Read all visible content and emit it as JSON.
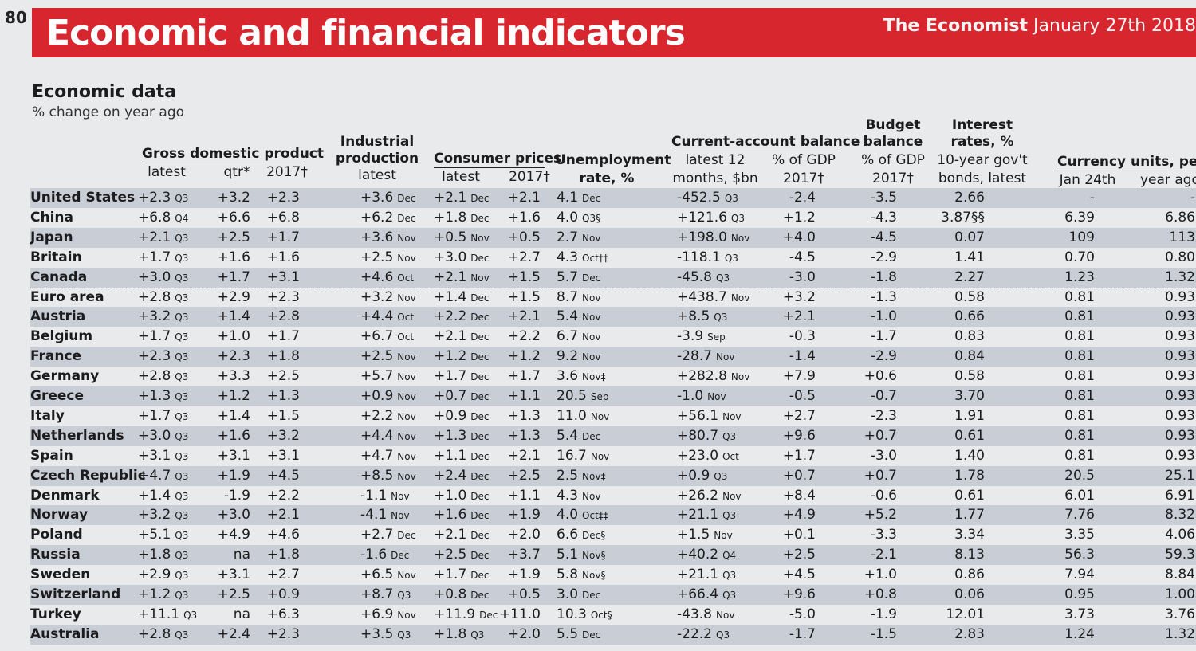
{
  "page_number": "80",
  "banner": {
    "title": "Economic and financial indicators",
    "publication": "The Economist",
    "date": "January 27th 2018",
    "color": "#d8262e"
  },
  "section": {
    "title": "Economic data",
    "subtitle": "% change on year ago"
  },
  "headers": {
    "gdp": "Gross domestic product",
    "gdp_latest": "latest",
    "gdp_qtr": "qtr*",
    "gdp_2017": "2017†",
    "ip_1": "Industrial",
    "ip_2": "production",
    "ip_latest": "latest",
    "cpi": "Consumer prices",
    "cpi_latest": "latest",
    "cpi_2017": "2017†",
    "unemp_1": "Unemployment",
    "unemp_2": "rate, %",
    "ca": "Current-account balance",
    "ca_a1": "latest 12",
    "ca_a2": "months, $bn",
    "ca_b1": "% of GDP",
    "ca_b2": "2017†",
    "bb_1": "Budget",
    "bb_2": "balance",
    "bb_3": "% of GDP",
    "bb_4": "2017†",
    "ir_1": "Interest",
    "ir_2": "rates, %",
    "ir_3": "10-year gov't",
    "ir_4": "bonds, latest",
    "cur": "Currency units, per $",
    "cur_a": "Jan 24th",
    "cur_b": "year ago"
  },
  "rows": [
    {
      "country": "United States",
      "gdp_latest": "+2.3",
      "gdp_latest_period": "Q3",
      "gdp_qtr": "+3.2",
      "gdp_2017": "+2.3",
      "ip": "+3.6",
      "ip_period": "Dec",
      "cpi": "+2.1",
      "cpi_period": "Dec",
      "cpi_2017": "+2.1",
      "unemp": "4.1",
      "unemp_period": "Dec",
      "ca_bn": "-452.5",
      "ca_period": "Q3",
      "ca_gdp": "-2.4",
      "budget": "-3.5",
      "bonds": "2.66",
      "cur_now": "-",
      "cur_ago": "-"
    },
    {
      "country": "China",
      "gdp_latest": "+6.8",
      "gdp_latest_period": "Q4",
      "gdp_qtr": "+6.6",
      "gdp_2017": "+6.8",
      "ip": "+6.2",
      "ip_period": "Dec",
      "cpi": "+1.8",
      "cpi_period": "Dec",
      "cpi_2017": "+1.6",
      "unemp": "4.0",
      "unemp_period": "Q3§",
      "ca_bn": "+121.6",
      "ca_period": "Q3",
      "ca_gdp": "+1.2",
      "budget": "-4.3",
      "bonds": "3.87§§",
      "cur_now": "6.39",
      "cur_ago": "6.86"
    },
    {
      "country": "Japan",
      "gdp_latest": "+2.1",
      "gdp_latest_period": "Q3",
      "gdp_qtr": "+2.5",
      "gdp_2017": "+1.7",
      "ip": "+3.6",
      "ip_period": "Nov",
      "cpi": "+0.5",
      "cpi_period": "Nov",
      "cpi_2017": "+0.5",
      "unemp": "2.7",
      "unemp_period": "Nov",
      "ca_bn": "+198.0",
      "ca_period": "Nov",
      "ca_gdp": "+4.0",
      "budget": "-4.5",
      "bonds": "0.07",
      "cur_now": "109",
      "cur_ago": "113"
    },
    {
      "country": "Britain",
      "gdp_latest": "+1.7",
      "gdp_latest_period": "Q3",
      "gdp_qtr": "+1.6",
      "gdp_2017": "+1.6",
      "ip": "+2.5",
      "ip_period": "Nov",
      "cpi": "+3.0",
      "cpi_period": "Dec",
      "cpi_2017": "+2.7",
      "unemp": "4.3",
      "unemp_period": "Oct††",
      "ca_bn": "-118.1",
      "ca_period": "Q3",
      "ca_gdp": "-4.5",
      "budget": "-2.9",
      "bonds": "1.41",
      "cur_now": "0.70",
      "cur_ago": "0.80"
    },
    {
      "country": "Canada",
      "gdp_latest": "+3.0",
      "gdp_latest_period": "Q3",
      "gdp_qtr": "+1.7",
      "gdp_2017": "+3.1",
      "ip": "+4.6",
      "ip_period": "Oct",
      "cpi": "+2.1",
      "cpi_period": "Nov",
      "cpi_2017": "+1.5",
      "unemp": "5.7",
      "unemp_period": "Dec",
      "ca_bn": "-45.8",
      "ca_period": "Q3",
      "ca_gdp": "-3.0",
      "budget": "-1.8",
      "bonds": "2.27",
      "cur_now": "1.23",
      "cur_ago": "1.32"
    },
    {
      "country": "Euro area",
      "gdp_latest": "+2.8",
      "gdp_latest_period": "Q3",
      "gdp_qtr": "+2.9",
      "gdp_2017": "+2.3",
      "ip": "+3.2",
      "ip_period": "Nov",
      "cpi": "+1.4",
      "cpi_period": "Dec",
      "cpi_2017": "+1.5",
      "unemp": "8.7",
      "unemp_period": "Nov",
      "ca_bn": "+438.7",
      "ca_period": "Nov",
      "ca_gdp": "+3.2",
      "budget": "-1.3",
      "bonds": "0.58",
      "cur_now": "0.81",
      "cur_ago": "0.93"
    },
    {
      "country": "Austria",
      "gdp_latest": "+3.2",
      "gdp_latest_period": "Q3",
      "gdp_qtr": "+1.4",
      "gdp_2017": "+2.8",
      "ip": "+4.4",
      "ip_period": "Oct",
      "cpi": "+2.2",
      "cpi_period": "Dec",
      "cpi_2017": "+2.1",
      "unemp": "5.4",
      "unemp_period": "Nov",
      "ca_bn": "+8.5",
      "ca_period": "Q3",
      "ca_gdp": "+2.1",
      "budget": "-1.0",
      "bonds": "0.66",
      "cur_now": "0.81",
      "cur_ago": "0.93"
    },
    {
      "country": "Belgium",
      "gdp_latest": "+1.7",
      "gdp_latest_period": "Q3",
      "gdp_qtr": "+1.0",
      "gdp_2017": "+1.7",
      "ip": "+6.7",
      "ip_period": "Oct",
      "cpi": "+2.1",
      "cpi_period": "Dec",
      "cpi_2017": "+2.2",
      "unemp": "6.7",
      "unemp_period": "Nov",
      "ca_bn": "-3.9",
      "ca_period": "Sep",
      "ca_gdp": "-0.3",
      "budget": "-1.7",
      "bonds": "0.83",
      "cur_now": "0.81",
      "cur_ago": "0.93"
    },
    {
      "country": "France",
      "gdp_latest": "+2.3",
      "gdp_latest_period": "Q3",
      "gdp_qtr": "+2.3",
      "gdp_2017": "+1.8",
      "ip": "+2.5",
      "ip_period": "Nov",
      "cpi": "+1.2",
      "cpi_period": "Dec",
      "cpi_2017": "+1.2",
      "unemp": "9.2",
      "unemp_period": "Nov",
      "ca_bn": "-28.7",
      "ca_period": "Nov",
      "ca_gdp": "-1.4",
      "budget": "-2.9",
      "bonds": "0.84",
      "cur_now": "0.81",
      "cur_ago": "0.93"
    },
    {
      "country": "Germany",
      "gdp_latest": "+2.8",
      "gdp_latest_period": "Q3",
      "gdp_qtr": "+3.3",
      "gdp_2017": "+2.5",
      "ip": "+5.7",
      "ip_period": "Nov",
      "cpi": "+1.7",
      "cpi_period": "Dec",
      "cpi_2017": "+1.7",
      "unemp": "3.6",
      "unemp_period": "Nov‡",
      "ca_bn": "+282.8",
      "ca_period": "Nov",
      "ca_gdp": "+7.9",
      "budget": "+0.6",
      "bonds": "0.58",
      "cur_now": "0.81",
      "cur_ago": "0.93"
    },
    {
      "country": "Greece",
      "gdp_latest": "+1.3",
      "gdp_latest_period": "Q3",
      "gdp_qtr": "+1.2",
      "gdp_2017": "+1.3",
      "ip": "+0.9",
      "ip_period": "Nov",
      "cpi": "+0.7",
      "cpi_period": "Dec",
      "cpi_2017": "+1.1",
      "unemp": "20.5",
      "unemp_period": "Sep",
      "ca_bn": "-1.0",
      "ca_period": "Nov",
      "ca_gdp": "-0.5",
      "budget": "-0.7",
      "bonds": "3.70",
      "cur_now": "0.81",
      "cur_ago": "0.93"
    },
    {
      "country": "Italy",
      "gdp_latest": "+1.7",
      "gdp_latest_period": "Q3",
      "gdp_qtr": "+1.4",
      "gdp_2017": "+1.5",
      "ip": "+2.2",
      "ip_period": "Nov",
      "cpi": "+0.9",
      "cpi_period": "Dec",
      "cpi_2017": "+1.3",
      "unemp": "11.0",
      "unemp_period": "Nov",
      "ca_bn": "+56.1",
      "ca_period": "Nov",
      "ca_gdp": "+2.7",
      "budget": "-2.3",
      "bonds": "1.91",
      "cur_now": "0.81",
      "cur_ago": "0.93"
    },
    {
      "country": "Netherlands",
      "gdp_latest": "+3.0",
      "gdp_latest_period": "Q3",
      "gdp_qtr": "+1.6",
      "gdp_2017": "+3.2",
      "ip": "+4.4",
      "ip_period": "Nov",
      "cpi": "+1.3",
      "cpi_period": "Dec",
      "cpi_2017": "+1.3",
      "unemp": "5.4",
      "unemp_period": "Dec",
      "ca_bn": "+80.7",
      "ca_period": "Q3",
      "ca_gdp": "+9.6",
      "budget": "+0.7",
      "bonds": "0.61",
      "cur_now": "0.81",
      "cur_ago": "0.93"
    },
    {
      "country": "Spain",
      "gdp_latest": "+3.1",
      "gdp_latest_period": "Q3",
      "gdp_qtr": "+3.1",
      "gdp_2017": "+3.1",
      "ip": "+4.7",
      "ip_period": "Nov",
      "cpi": "+1.1",
      "cpi_period": "Dec",
      "cpi_2017": "+2.1",
      "unemp": "16.7",
      "unemp_period": "Nov",
      "ca_bn": "+23.0",
      "ca_period": "Oct",
      "ca_gdp": "+1.7",
      "budget": "-3.0",
      "bonds": "1.40",
      "cur_now": "0.81",
      "cur_ago": "0.93"
    },
    {
      "country": "Czech Republic",
      "gdp_latest": "+4.7",
      "gdp_latest_period": "Q3",
      "gdp_qtr": "+1.9",
      "gdp_2017": "+4.5",
      "ip": "+8.5",
      "ip_period": "Nov",
      "cpi": "+2.4",
      "cpi_period": "Dec",
      "cpi_2017": "+2.5",
      "unemp": "2.5",
      "unemp_period": "Nov‡",
      "ca_bn": "+0.9",
      "ca_period": "Q3",
      "ca_gdp": "+0.7",
      "budget": "+0.7",
      "bonds": "1.78",
      "cur_now": "20.5",
      "cur_ago": "25.1"
    },
    {
      "country": "Denmark",
      "gdp_latest": "+1.4",
      "gdp_latest_period": "Q3",
      "gdp_qtr": "-1.9",
      "gdp_2017": "+2.2",
      "ip": "-1.1",
      "ip_period": "Nov",
      "cpi": "+1.0",
      "cpi_period": "Dec",
      "cpi_2017": "+1.1",
      "unemp": "4.3",
      "unemp_period": "Nov",
      "ca_bn": "+26.2",
      "ca_period": "Nov",
      "ca_gdp": "+8.4",
      "budget": "-0.6",
      "bonds": "0.61",
      "cur_now": "6.01",
      "cur_ago": "6.91"
    },
    {
      "country": "Norway",
      "gdp_latest": "+3.2",
      "gdp_latest_period": "Q3",
      "gdp_qtr": "+3.0",
      "gdp_2017": "+2.1",
      "ip": "-4.1",
      "ip_period": "Nov",
      "cpi": "+1.6",
      "cpi_period": "Dec",
      "cpi_2017": "+1.9",
      "unemp": "4.0",
      "unemp_period": "Oct‡‡",
      "ca_bn": "+21.1",
      "ca_period": "Q3",
      "ca_gdp": "+4.9",
      "budget": "+5.2",
      "bonds": "1.77",
      "cur_now": "7.76",
      "cur_ago": "8.32"
    },
    {
      "country": "Poland",
      "gdp_latest": "+5.1",
      "gdp_latest_period": "Q3",
      "gdp_qtr": "+4.9",
      "gdp_2017": "+4.6",
      "ip": "+2.7",
      "ip_period": "Dec",
      "cpi": "+2.1",
      "cpi_period": "Dec",
      "cpi_2017": "+2.0",
      "unemp": "6.6",
      "unemp_period": "Dec§",
      "ca_bn": "+1.5",
      "ca_period": "Nov",
      "ca_gdp": "+0.1",
      "budget": "-3.3",
      "bonds": "3.34",
      "cur_now": "3.35",
      "cur_ago": "4.06"
    },
    {
      "country": "Russia",
      "gdp_latest": "+1.8",
      "gdp_latest_period": "Q3",
      "gdp_qtr": "na",
      "gdp_2017": "+1.8",
      "ip": "-1.6",
      "ip_period": "Dec",
      "cpi": "+2.5",
      "cpi_period": "Dec",
      "cpi_2017": "+3.7",
      "unemp": "5.1",
      "unemp_period": "Nov§",
      "ca_bn": "+40.2",
      "ca_period": "Q4",
      "ca_gdp": "+2.5",
      "budget": "-2.1",
      "bonds": "8.13",
      "cur_now": "56.3",
      "cur_ago": "59.3"
    },
    {
      "country": "Sweden",
      "gdp_latest": "+2.9",
      "gdp_latest_period": "Q3",
      "gdp_qtr": "+3.1",
      "gdp_2017": "+2.7",
      "ip": "+6.5",
      "ip_period": "Nov",
      "cpi": "+1.7",
      "cpi_period": "Dec",
      "cpi_2017": "+1.9",
      "unemp": "5.8",
      "unemp_period": "Nov§",
      "ca_bn": "+21.1",
      "ca_period": "Q3",
      "ca_gdp": "+4.5",
      "budget": "+1.0",
      "bonds": "0.86",
      "cur_now": "7.94",
      "cur_ago": "8.84"
    },
    {
      "country": "Switzerland",
      "gdp_latest": "+1.2",
      "gdp_latest_period": "Q3",
      "gdp_qtr": "+2.5",
      "gdp_2017": "+0.9",
      "ip": "+8.7",
      "ip_period": "Q3",
      "cpi": "+0.8",
      "cpi_period": "Dec",
      "cpi_2017": "+0.5",
      "unemp": "3.0",
      "unemp_period": "Dec",
      "ca_bn": "+66.4",
      "ca_period": "Q3",
      "ca_gdp": "+9.6",
      "budget": "+0.8",
      "bonds": "0.06",
      "cur_now": "0.95",
      "cur_ago": "1.00"
    },
    {
      "country": "Turkey",
      "gdp_latest": "+11.1",
      "gdp_latest_period": "Q3",
      "gdp_qtr": "na",
      "gdp_2017": "+6.3",
      "ip": "+6.9",
      "ip_period": "Nov",
      "cpi": "+11.9",
      "cpi_period": "Dec",
      "cpi_2017": "+11.0",
      "unemp": "10.3",
      "unemp_period": "Oct§",
      "ca_bn": "-43.8",
      "ca_period": "Nov",
      "ca_gdp": "-5.0",
      "budget": "-1.9",
      "bonds": "12.01",
      "cur_now": "3.73",
      "cur_ago": "3.76"
    },
    {
      "country": "Australia",
      "gdp_latest": "+2.8",
      "gdp_latest_period": "Q3",
      "gdp_qtr": "+2.4",
      "gdp_2017": "+2.3",
      "ip": "+3.5",
      "ip_period": "Q3",
      "cpi": "+1.8",
      "cpi_period": "Q3",
      "cpi_2017": "+2.0",
      "unemp": "5.5",
      "unemp_period": "Dec",
      "ca_bn": "-22.2",
      "ca_period": "Q3",
      "ca_gdp": "-1.7",
      "budget": "-1.5",
      "bonds": "2.83",
      "cur_now": "1.24",
      "cur_ago": "1.32"
    }
  ]
}
